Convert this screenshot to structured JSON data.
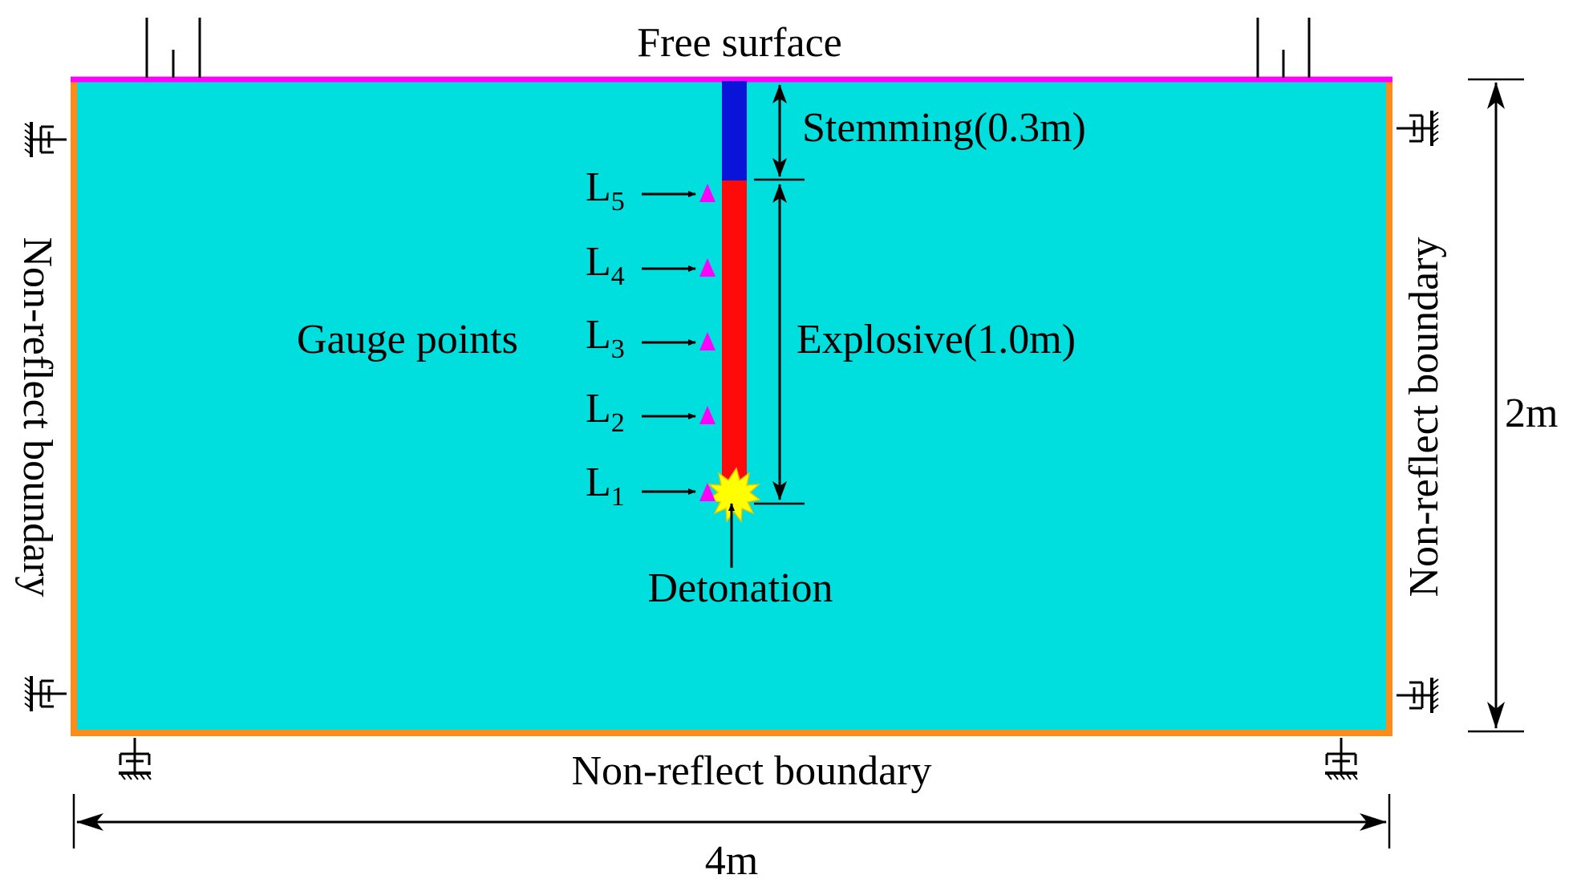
{
  "labels": {
    "free_surface": "Free surface",
    "stemming": "Stemming(0.3m)",
    "explosive": "Explosive(1.0m)",
    "gauge_points": "Gauge points",
    "detonation": "Detonation",
    "left_boundary": "Non-reflect boundary",
    "right_boundary": "Non-reflect boundary",
    "bottom_boundary": "Non-reflect boundary",
    "width": "4m",
    "height": "2m"
  },
  "gauges": [
    {
      "letter": "L",
      "sub": "5"
    },
    {
      "letter": "L",
      "sub": "4"
    },
    {
      "letter": "L",
      "sub": "3"
    },
    {
      "letter": "L",
      "sub": "2"
    },
    {
      "letter": "L",
      "sub": "1"
    }
  ],
  "colors": {
    "rock": "#00DEDE",
    "free_surface": "#FF00FF",
    "boundary": "#FF8C1A",
    "stemming": "#0A14D8",
    "explosive": "#FF0A0A",
    "gauge_marker": "#FF00FF",
    "detonation": "#FFFF00"
  }
}
